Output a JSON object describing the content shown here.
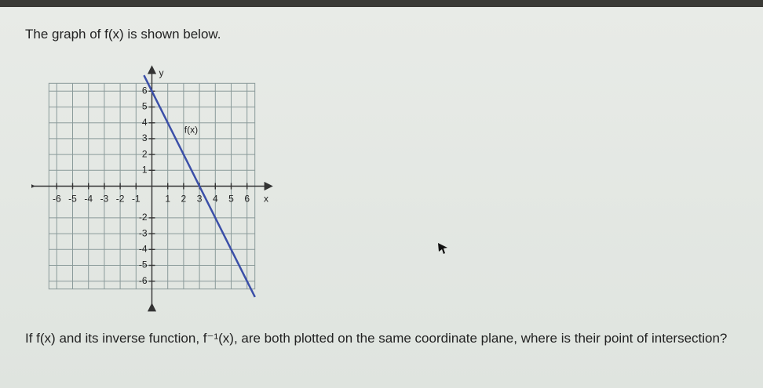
{
  "question": {
    "intro": "The graph of f(x) is shown below.",
    "prompt": "If f(x) and its inverse function, f⁻¹(x), are both plotted on the same coordinate plane, where is their point of intersection?"
  },
  "chart_data": {
    "type": "line",
    "x_label": "x",
    "y_label": "y",
    "x": [
      -0.5,
      3,
      6.5
    ],
    "series": [
      {
        "name": "f(x)",
        "color": "#3b4fa8",
        "values": [
          7,
          0,
          -7
        ]
      }
    ],
    "xlim": [
      -7.5,
      7.5
    ],
    "ylim": [
      -7.5,
      7.5
    ],
    "xticks": [
      -6,
      -5,
      -4,
      -3,
      -2,
      -1,
      1,
      2,
      3,
      4,
      5,
      6
    ],
    "yticks": [
      -6,
      -5,
      -4,
      -3,
      -2,
      1,
      2,
      3,
      4,
      5,
      6
    ],
    "grid": true
  }
}
